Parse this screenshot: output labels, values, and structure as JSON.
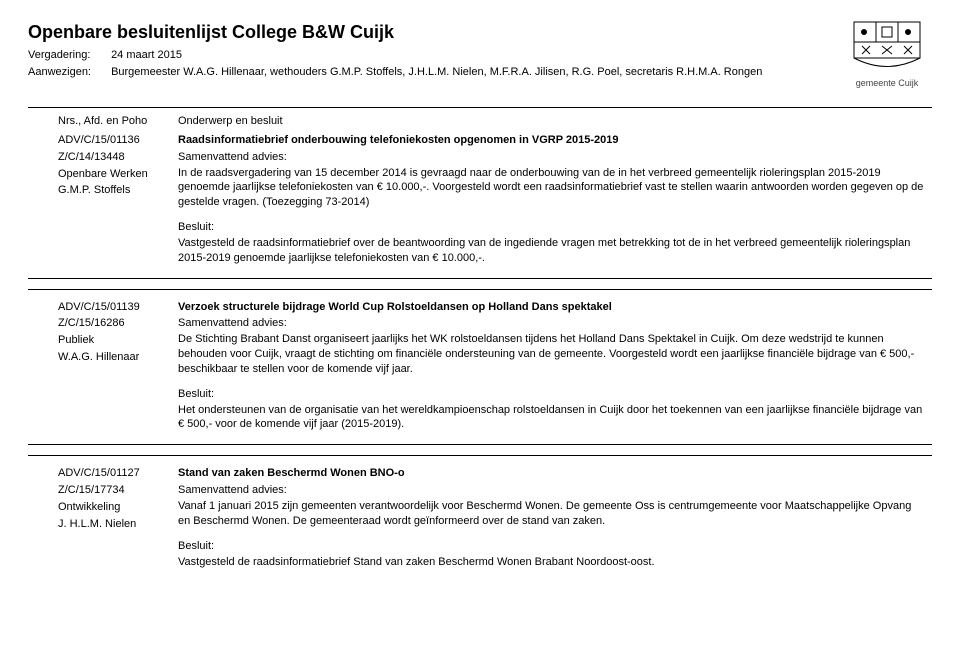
{
  "header": {
    "title": "Openbare besluitenlijst College B&W Cuijk",
    "meeting_label": "Vergadering:",
    "meeting_date": "24 maart 2015",
    "present_label": "Aanwezigen:",
    "present": "Burgemeester W.A.G. Hillenaar, wethouders G.M.P. Stoffels, J.H.L.M. Nielen, M.F.R.A. Jilisen, R.G. Poel, secretaris R.H.M.A. Rongen",
    "muni": "gemeente Cuijk"
  },
  "columns": {
    "left": "Nrs., Afd. en Poho",
    "right": "Onderwerp en besluit"
  },
  "labels": {
    "advice": "Samenvattend advies:",
    "besluit": "Besluit:"
  },
  "items": [
    {
      "ref1": "ADV/C/15/01136",
      "ref2": "Z/C/14/13448",
      "dept": "Openbare Werken",
      "holder": "G.M.P. Stoffels",
      "subject": "Raadsinformatiebrief onderbouwing telefoniekosten opgenomen in VGRP 2015-2019",
      "advice": "In de raadsvergadering van 15 december 2014 is gevraagd naar de onderbouwing van de in het verbreed gemeentelijk rioleringsplan 2015-2019 genoemde jaarlijkse telefoniekosten van € 10.000,-. Voorgesteld wordt een raadsinformatiebrief vast te stellen waarin antwoorden worden gegeven op de gestelde vragen. (Toezegging 73-2014)",
      "besluit": "Vastgesteld de raadsinformatiebrief over de beantwoording van de ingediende vragen met betrekking tot de in het verbreed gemeentelijk rioleringsplan 2015-2019 genoemde jaarlijkse telefoniekosten van € 10.000,-."
    },
    {
      "ref1": "ADV/C/15/01139",
      "ref2": "Z/C/15/16286",
      "dept": "Publiek",
      "holder": "W.A.G. Hillenaar",
      "subject": "Verzoek structurele bijdrage World Cup Rolstoeldansen op Holland Dans spektakel",
      "advice": "De Stichting Brabant Danst organiseert jaarlijks het WK rolstoeldansen tijdens het Holland Dans Spektakel in Cuijk. Om deze wedstrijd te kunnen behouden voor Cuijk, vraagt de stichting om financiële ondersteuning van de gemeente. Voorgesteld wordt een jaarlijkse financiële bijdrage van € 500,- beschikbaar te stellen voor de komende vijf jaar.",
      "besluit": "Het ondersteunen van de organisatie van het wereldkampioenschap rolstoeldansen in Cuijk door het toekennen van een jaarlijkse financiële bijdrage van € 500,- voor de komende vijf jaar (2015-2019)."
    },
    {
      "ref1": "ADV/C/15/01127",
      "ref2": "Z/C/15/17734",
      "dept": "Ontwikkeling",
      "holder": "J. H.L.M. Nielen",
      "subject": "Stand van zaken Beschermd Wonen BNO-o",
      "advice": "Vanaf 1 januari 2015 zijn gemeenten verantwoordelijk voor Beschermd Wonen. De gemeente Oss is centrumgemeente voor Maatschappelijke Opvang en Beschermd Wonen. De gemeenteraad wordt geïnformeerd over de stand van zaken.",
      "besluit": "Vastgesteld de raadsinformatiebrief Stand van zaken Beschermd Wonen Brabant Noordoost-oost."
    }
  ]
}
